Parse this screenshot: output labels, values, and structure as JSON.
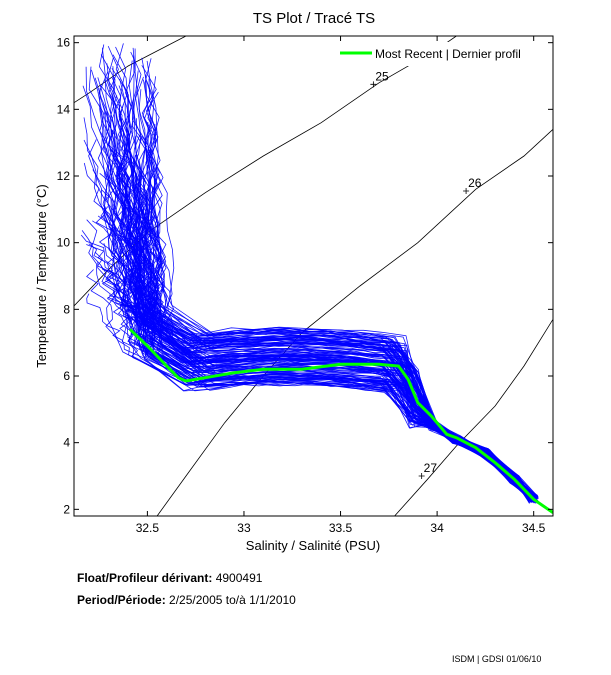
{
  "chart_data": {
    "type": "line",
    "title": "TS Plot / Tracé TS",
    "xlabel": "Salinity / Salinité (PSU)",
    "ylabel": "Temperature / Température (°C)",
    "xlim": [
      32.12,
      34.6
    ],
    "ylim": [
      1.8,
      16.2
    ],
    "xticks": [
      32.5,
      33,
      33.5,
      34,
      34.5
    ],
    "yticks": [
      2,
      4,
      6,
      8,
      10,
      12,
      14,
      16
    ],
    "grid": false,
    "legend_position": "top-right",
    "legend": [
      {
        "label": "Most Recent | Dernier profil",
        "color": "#00ff00"
      }
    ],
    "colors": {
      "profiles": "#0000ff",
      "most_recent": "#00ff00",
      "isopycnals": "#000000"
    },
    "isopycnals": [
      {
        "label": "",
        "points": [
          [
            32.12,
            14.2
          ],
          [
            32.2,
            14.5
          ],
          [
            32.3,
            14.9
          ],
          [
            32.4,
            15.3
          ],
          [
            32.5,
            15.6
          ],
          [
            32.6,
            15.9
          ],
          [
            32.7,
            16.2
          ]
        ]
      },
      {
        "label": "25",
        "points": [
          [
            32.12,
            8.1
          ],
          [
            32.3,
            9.2
          ],
          [
            32.5,
            10.3
          ],
          [
            32.8,
            11.5
          ],
          [
            33.1,
            12.6
          ],
          [
            33.4,
            13.6
          ],
          [
            33.7,
            14.8
          ],
          [
            34.0,
            15.8
          ],
          [
            34.1,
            16.2
          ]
        ],
        "marker": [
          33.67,
          14.75
        ]
      },
      {
        "label": "26",
        "points": [
          [
            32.55,
            1.8
          ],
          [
            32.7,
            3.0
          ],
          [
            32.9,
            4.6
          ],
          [
            33.1,
            6.0
          ],
          [
            33.3,
            7.3
          ],
          [
            33.6,
            8.7
          ],
          [
            33.9,
            10.0
          ],
          [
            34.2,
            11.6
          ],
          [
            34.45,
            12.6
          ],
          [
            34.6,
            13.4
          ]
        ],
        "marker": [
          34.15,
          11.55
        ]
      },
      {
        "label": "27",
        "points": [
          [
            33.78,
            1.8
          ],
          [
            33.95,
            2.9
          ],
          [
            34.1,
            3.9
          ],
          [
            34.3,
            5.1
          ],
          [
            34.45,
            6.3
          ],
          [
            34.6,
            7.7
          ]
        ],
        "marker": [
          33.92,
          3.0
        ]
      }
    ],
    "most_recent": {
      "name": "Most Recent | Dernier profil",
      "x": [
        32.41,
        32.5,
        32.6,
        32.66,
        32.7,
        32.8,
        32.95,
        33.1,
        33.3,
        33.5,
        33.6,
        33.7,
        33.8,
        33.85,
        33.9,
        33.97,
        34.05,
        34.1,
        34.2,
        34.3,
        34.4,
        34.5,
        34.6
      ],
      "y": [
        7.4,
        6.9,
        6.3,
        5.95,
        5.85,
        5.95,
        6.1,
        6.2,
        6.2,
        6.35,
        6.35,
        6.35,
        6.3,
        5.9,
        5.2,
        4.8,
        4.25,
        4.15,
        3.85,
        3.4,
        2.9,
        2.3,
        1.9
      ]
    },
    "profile_envelope": {
      "description_free": "",
      "surface_salinity_range": [
        32.18,
        32.55
      ],
      "surface_temperature_range": [
        8.0,
        16.0
      ],
      "count": 140
    }
  },
  "float_info": {
    "float_label": "Float/Profileur dérivant:",
    "float_id": "4900491",
    "period_label": "Period/Période:",
    "start": "2/25/2005",
    "to_label": "to/à",
    "end": "1/1/2010"
  },
  "footer": "ISDM | GDSI 01/06/10"
}
